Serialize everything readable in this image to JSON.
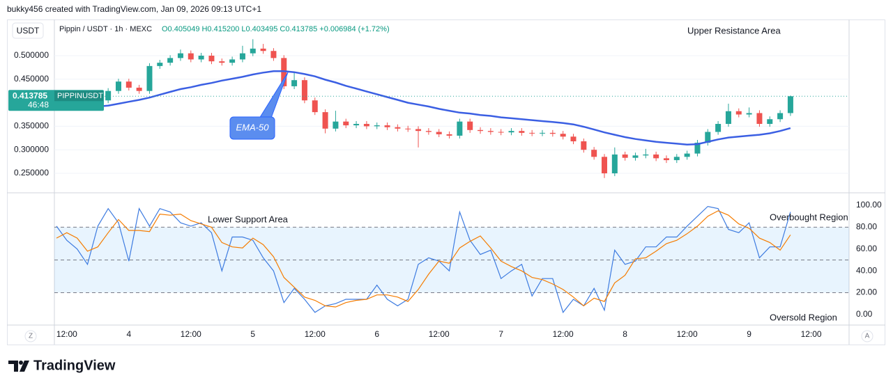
{
  "ui": {
    "header": "bukky456 created with TradingView.com, Jan 09, 2026 09:13 UTC+1",
    "z_button": "Z",
    "a_button": "A",
    "brand": "TradingView"
  },
  "chart_data": [
    {
      "type": "candlestick",
      "title": "Pippin / USDT · 1h · MEXC",
      "ohlc_text": "O0.405049 H0.415200 L0.403495 C0.413785 +0.006984 (+1.72%)",
      "currency": "USDT",
      "last_price": 0.413785,
      "symbol": "PIPPINUSDT",
      "countdown": "46:48",
      "annotations": [
        "Upper Resistance Area"
      ],
      "up_color": "#26a69a",
      "down_color": "#ef5350",
      "categories": [
        null,
        "12:00",
        null,
        null,
        null,
        null,
        null,
        "4",
        null,
        null,
        null,
        null,
        null,
        "12:00",
        null,
        null,
        null,
        null,
        null,
        "5",
        null,
        null,
        null,
        null,
        null,
        "12:00",
        null,
        null,
        null,
        null,
        null,
        "6",
        null,
        null,
        null,
        null,
        null,
        "12:00",
        null,
        null,
        null,
        null,
        null,
        "7",
        null,
        null,
        null,
        null,
        null,
        "12:00",
        null,
        null,
        null,
        null,
        null,
        "8",
        null,
        null,
        null,
        null,
        null,
        "12:00",
        null,
        null,
        null,
        null,
        null,
        "9",
        null,
        null,
        null,
        null,
        null,
        "12:00"
      ],
      "open": [
        0.39,
        0.392,
        0.395,
        0.398,
        0.395,
        0.405,
        0.425,
        0.445,
        0.432,
        0.425,
        0.478,
        0.485,
        0.495,
        0.505,
        0.492,
        0.5,
        0.488,
        0.485,
        0.492,
        0.505,
        0.515,
        0.51,
        0.495,
        0.435,
        0.448,
        0.405,
        0.38,
        0.345,
        0.36,
        0.352,
        0.355,
        0.35,
        0.352,
        0.348,
        0.345,
        0.344,
        0.34,
        0.338,
        0.333,
        0.33,
        0.36,
        0.342,
        0.34,
        0.338,
        0.337,
        0.34,
        0.336,
        0.335,
        0.336,
        0.334,
        0.328,
        0.318,
        0.3,
        0.285,
        0.25,
        0.29,
        0.283,
        0.288,
        0.29,
        0.282,
        0.278,
        0.285,
        0.292,
        0.315,
        0.338,
        0.355,
        0.382,
        0.375,
        0.378,
        0.355,
        0.365,
        0.378,
        null,
        null
      ],
      "high": [
        0.398,
        0.401,
        0.404,
        0.404,
        0.411,
        0.431,
        0.451,
        0.451,
        0.438,
        0.484,
        0.491,
        0.501,
        0.513,
        0.511,
        0.506,
        0.506,
        0.494,
        0.498,
        0.521,
        0.535,
        0.525,
        0.516,
        0.501,
        0.465,
        0.454,
        0.411,
        0.386,
        0.383,
        0.366,
        0.361,
        0.361,
        0.358,
        0.358,
        0.354,
        0.351,
        0.35,
        0.346,
        0.344,
        0.339,
        0.366,
        0.366,
        0.348,
        0.346,
        0.344,
        0.346,
        0.346,
        0.342,
        0.342,
        0.342,
        0.34,
        0.334,
        0.324,
        0.306,
        0.291,
        0.305,
        0.296,
        0.294,
        0.302,
        0.296,
        0.288,
        0.291,
        0.298,
        0.321,
        0.344,
        0.361,
        0.398,
        0.388,
        0.39,
        0.384,
        0.371,
        0.384,
        0.4152,
        null,
        null
      ],
      "low": [
        0.384,
        0.386,
        0.389,
        0.389,
        0.389,
        0.399,
        0.419,
        0.426,
        0.419,
        0.419,
        0.472,
        0.479,
        0.489,
        0.486,
        0.486,
        0.482,
        0.479,
        0.479,
        0.486,
        0.499,
        0.504,
        0.489,
        0.429,
        0.429,
        0.399,
        0.374,
        0.335,
        0.339,
        0.346,
        0.346,
        0.344,
        0.344,
        0.342,
        0.339,
        0.338,
        0.305,
        0.332,
        0.327,
        0.324,
        0.324,
        0.336,
        0.334,
        0.332,
        0.331,
        0.331,
        0.33,
        0.329,
        0.329,
        0.328,
        0.322,
        0.312,
        0.294,
        0.279,
        0.24,
        0.244,
        0.277,
        0.277,
        0.282,
        0.276,
        0.272,
        0.272,
        0.279,
        0.286,
        0.309,
        0.332,
        0.349,
        0.369,
        0.369,
        0.349,
        0.349,
        0.359,
        0.372,
        null,
        null
      ],
      "close": [
        0.392,
        0.395,
        0.398,
        0.395,
        0.405,
        0.425,
        0.445,
        0.432,
        0.425,
        0.478,
        0.485,
        0.495,
        0.505,
        0.492,
        0.5,
        0.488,
        0.485,
        0.492,
        0.505,
        0.515,
        0.51,
        0.495,
        0.435,
        0.448,
        0.405,
        0.38,
        0.345,
        0.36,
        0.352,
        0.355,
        0.35,
        0.352,
        0.348,
        0.345,
        0.344,
        0.34,
        0.338,
        0.333,
        0.33,
        0.36,
        0.342,
        0.34,
        0.338,
        0.337,
        0.34,
        0.336,
        0.335,
        0.336,
        0.334,
        0.328,
        0.318,
        0.3,
        0.285,
        0.25,
        0.29,
        0.283,
        0.288,
        0.29,
        0.282,
        0.278,
        0.285,
        0.292,
        0.315,
        0.338,
        0.355,
        0.382,
        0.375,
        0.378,
        0.355,
        0.365,
        0.378,
        0.413785,
        null,
        null
      ],
      "series": [
        {
          "name": "EMA-50",
          "color": "#3b5fe3",
          "values": [
            0.389,
            0.389,
            0.39,
            0.391,
            0.392,
            0.394,
            0.398,
            0.402,
            0.406,
            0.411,
            0.417,
            0.423,
            0.429,
            0.433,
            0.438,
            0.442,
            0.447,
            0.451,
            0.455,
            0.46,
            0.464,
            0.467,
            0.467,
            0.465,
            0.461,
            0.456,
            0.449,
            0.443,
            0.436,
            0.43,
            0.424,
            0.418,
            0.412,
            0.406,
            0.4,
            0.396,
            0.392,
            0.387,
            0.383,
            0.379,
            0.377,
            0.374,
            0.372,
            0.369,
            0.367,
            0.365,
            0.363,
            0.361,
            0.359,
            0.357,
            0.354,
            0.349,
            0.343,
            0.337,
            0.332,
            0.327,
            0.323,
            0.32,
            0.317,
            0.315,
            0.313,
            0.311,
            0.312,
            0.317,
            0.322,
            0.326,
            0.328,
            0.33,
            0.332,
            0.335,
            0.34,
            0.346,
            null,
            null
          ]
        }
      ],
      "ylim": [
        0.2086,
        0.5769
      ],
      "yticks": [
        {
          "value": 0.25,
          "label": "0.250000"
        },
        {
          "value": 0.3,
          "label": "0.300000"
        },
        {
          "value": 0.35,
          "label": "0.350000"
        },
        {
          "value": 0.45,
          "label": "0.450000"
        },
        {
          "value": 0.5,
          "label": "0.500000"
        }
      ],
      "grid": true
    },
    {
      "type": "line",
      "annotations": [
        "Lower Support Area",
        "Overbought Region",
        "Oversold Region"
      ],
      "series": [
        {
          "color": "#3d7be0",
          "values": [
            81,
            68,
            60,
            46,
            81,
            97,
            84,
            49,
            97,
            81,
            97,
            94,
            84,
            81,
            84,
            75,
            40,
            71,
            71,
            68,
            52,
            40,
            11,
            24,
            14,
            2,
            8,
            10,
            14,
            14,
            14,
            27,
            14,
            8,
            14,
            46,
            52,
            49,
            40,
            94,
            68,
            55,
            59,
            33,
            40,
            46,
            17,
            33,
            33,
            2,
            14,
            8,
            24,
            4,
            59,
            46,
            49,
            62,
            62,
            71,
            71,
            81,
            90,
            99,
            97,
            78,
            75,
            84,
            52,
            62,
            62,
            94,
            null,
            null
          ]
        },
        {
          "color": "#f57c00",
          "values": [
            70,
            75,
            70,
            58,
            62,
            75,
            87,
            77,
            77,
            76,
            92,
            91,
            92,
            86,
            83,
            80,
            66,
            62,
            61,
            70,
            64,
            53,
            34,
            25,
            16,
            13,
            8,
            7,
            11,
            13,
            14,
            18,
            18,
            16,
            12,
            23,
            37,
            49,
            47,
            61,
            67,
            72,
            61,
            49,
            44,
            40,
            34,
            32,
            28,
            23,
            16,
            8,
            15,
            12,
            29,
            36,
            51,
            52,
            58,
            65,
            68,
            74,
            81,
            90,
            95,
            91,
            83,
            79,
            70,
            66,
            59,
            73,
            null,
            null
          ]
        }
      ],
      "levels": [
        80,
        50,
        20
      ],
      "band": [
        20,
        80
      ],
      "band_color": "#2196f3",
      "ylim": [
        -9.6,
        111.5
      ],
      "yticks": [
        {
          "value": 0,
          "label": "0.00"
        },
        {
          "value": 20,
          "label": "20.00"
        },
        {
          "value": 40,
          "label": "40.00"
        },
        {
          "value": 60,
          "label": "60.00"
        },
        {
          "value": 80,
          "label": "80.00"
        },
        {
          "value": 100,
          "label": "100.00"
        }
      ]
    }
  ]
}
